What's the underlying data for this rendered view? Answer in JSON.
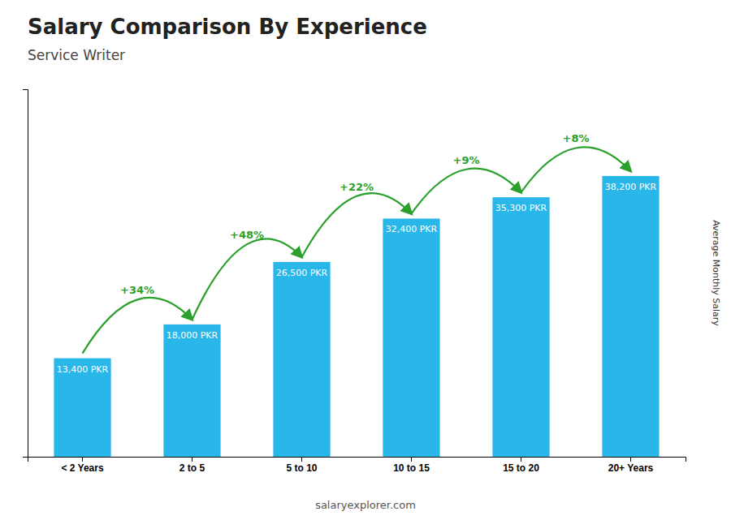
{
  "chart_data": {
    "type": "bar",
    "title": "Salary Comparison By Experience",
    "subtitle": "Service Writer",
    "ylabel": "Average Monthly Salary",
    "watermark": "salaryexplorer.com",
    "categories": [
      "< 2 Years",
      "2 to 5",
      "5 to 10",
      "10 to 15",
      "15 to 20",
      "20+ Years"
    ],
    "values": [
      13400,
      18000,
      26500,
      32400,
      35300,
      38200
    ],
    "value_labels": [
      "13,400 PKR",
      "18,000 PKR",
      "26,500 PKR",
      "32,400 PKR",
      "35,300 PKR",
      "38,200 PKR"
    ],
    "data_labels": true,
    "annotations": [
      "+34%",
      "+48%",
      "+22%",
      "+9%",
      "+8%"
    ],
    "color": "#29b6e8",
    "ylim": [
      0,
      50000
    ],
    "tick_labels": "x",
    "grid": false
  }
}
